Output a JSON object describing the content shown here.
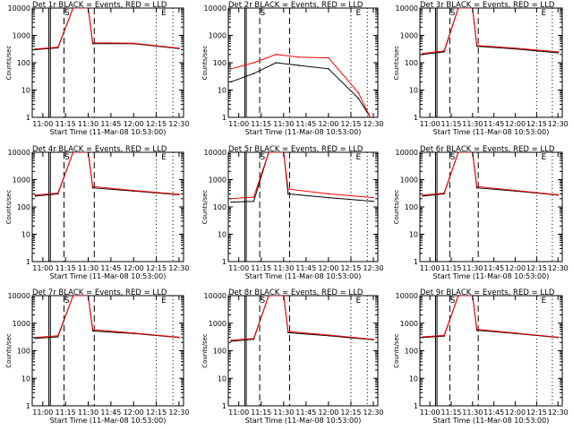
{
  "chart_data": [
    {
      "type": "line",
      "title": "Det 1r BLACK = Events, RED = LLD",
      "xlabel": "Start Time (11-Mar-08 10:53:00)",
      "ylabel": "Counts/sec",
      "yscale": "log",
      "ylim": [
        1,
        10000
      ],
      "xlim": [
        "10:53",
        "12:33"
      ],
      "x_ticks": [
        "11:00",
        "11:15",
        "11:30",
        "11:45",
        "12:00",
        "12:15",
        "12:30"
      ],
      "y_ticks": [
        "1",
        "10",
        "100",
        "1000",
        "10000"
      ],
      "markers": [
        "S",
        "E"
      ],
      "series": [
        {
          "name": "Events",
          "color": "#000000",
          "values": [
            {
              "time": "10:55",
              "value": 300
            },
            {
              "time": "11:10",
              "value": 350
            },
            {
              "time": "11:20",
              "value": 10000
            },
            {
              "time": "11:30",
              "value": 10000
            },
            {
              "time": "11:33",
              "value": 500
            },
            {
              "time": "12:00",
              "value": 500
            },
            {
              "time": "12:30",
              "value": 330
            }
          ]
        },
        {
          "name": "LLD",
          "color": "#ff0000",
          "values": [
            {
              "time": "10:55",
              "value": 320
            },
            {
              "time": "11:10",
              "value": 370
            },
            {
              "time": "11:20",
              "value": 10000
            },
            {
              "time": "11:30",
              "value": 10000
            },
            {
              "time": "11:33",
              "value": 540
            },
            {
              "time": "12:00",
              "value": 520
            },
            {
              "time": "12:30",
              "value": 340
            }
          ]
        }
      ]
    },
    {
      "type": "line",
      "title": "Det 2r BLACK = Events, RED = LLD",
      "xlabel": "Start Time (11-Mar-08 10:53:00)",
      "ylabel": "Counts/sec",
      "yscale": "log",
      "ylim": [
        1,
        10000
      ],
      "xlim": [
        "10:53",
        "12:33"
      ],
      "x_ticks": [
        "11:00",
        "11:15",
        "11:30",
        "11:45",
        "12:00",
        "12:15",
        "12:30"
      ],
      "y_ticks": [
        "1",
        "10",
        "100",
        "1000",
        "10000"
      ],
      "markers": [
        "S",
        "E"
      ],
      "series": [
        {
          "name": "Events",
          "color": "#000000",
          "values": [
            {
              "time": "10:55",
              "value": 20
            },
            {
              "time": "11:10",
              "value": 40
            },
            {
              "time": "11:25",
              "value": 100
            },
            {
              "time": "11:40",
              "value": 80
            },
            {
              "time": "12:00",
              "value": 60
            },
            {
              "time": "12:20",
              "value": 5
            },
            {
              "time": "12:28",
              "value": 1
            }
          ]
        },
        {
          "name": "LLD",
          "color": "#ff0000",
          "values": [
            {
              "time": "10:55",
              "value": 60
            },
            {
              "time": "11:10",
              "value": 100
            },
            {
              "time": "11:25",
              "value": 200
            },
            {
              "time": "11:40",
              "value": 160
            },
            {
              "time": "12:00",
              "value": 150
            },
            {
              "time": "12:20",
              "value": 8
            },
            {
              "time": "12:28",
              "value": 1
            }
          ]
        }
      ]
    },
    {
      "type": "line",
      "title": "Det 3r BLACK = Events, RED = LLD",
      "xlabel": "Start Time (11-Mar-08 10:53:00)",
      "ylabel": "Counts/sec",
      "yscale": "log",
      "ylim": [
        1,
        10000
      ],
      "xlim": [
        "10:53",
        "12:33"
      ],
      "x_ticks": [
        "11:00",
        "11:15",
        "11:30",
        "11:45",
        "12:00",
        "12:15",
        "12:30"
      ],
      "y_ticks": [
        "1",
        "10",
        "100",
        "1000",
        "10000"
      ],
      "markers": [
        "S",
        "E"
      ],
      "series": [
        {
          "name": "Events",
          "color": "#000000",
          "values": [
            {
              "time": "10:55",
              "value": 200
            },
            {
              "time": "11:10",
              "value": 250
            },
            {
              "time": "11:20",
              "value": 10000
            },
            {
              "time": "11:30",
              "value": 10000
            },
            {
              "time": "11:33",
              "value": 400
            },
            {
              "time": "12:00",
              "value": 320
            },
            {
              "time": "12:30",
              "value": 230
            }
          ]
        },
        {
          "name": "LLD",
          "color": "#ff0000",
          "values": [
            {
              "time": "10:55",
              "value": 220
            },
            {
              "time": "11:10",
              "value": 270
            },
            {
              "time": "11:20",
              "value": 10000
            },
            {
              "time": "11:30",
              "value": 10000
            },
            {
              "time": "11:33",
              "value": 430
            },
            {
              "time": "12:00",
              "value": 340
            },
            {
              "time": "12:30",
              "value": 250
            }
          ]
        }
      ]
    },
    {
      "type": "line",
      "title": "Det 4r BLACK = Events, RED = LLD",
      "xlabel": "Start Time (11-Mar-08 10:53:00)",
      "ylabel": "Counts/sec",
      "yscale": "log",
      "ylim": [
        1,
        10000
      ],
      "xlim": [
        "10:53",
        "12:33"
      ],
      "x_ticks": [
        "11:00",
        "11:15",
        "11:30",
        "11:45",
        "12:00",
        "12:15",
        "12:30"
      ],
      "y_ticks": [
        "1",
        "10",
        "100",
        "1000",
        "10000"
      ],
      "markers": [
        "S",
        "E"
      ],
      "series": [
        {
          "name": "Events",
          "color": "#000000",
          "values": [
            {
              "time": "10:55",
              "value": 250
            },
            {
              "time": "11:10",
              "value": 300
            },
            {
              "time": "11:20",
              "value": 10000
            },
            {
              "time": "11:30",
              "value": 10000
            },
            {
              "time": "11:33",
              "value": 500
            },
            {
              "time": "12:00",
              "value": 380
            },
            {
              "time": "12:30",
              "value": 280
            }
          ]
        },
        {
          "name": "LLD",
          "color": "#ff0000",
          "values": [
            {
              "time": "10:55",
              "value": 270
            },
            {
              "time": "11:10",
              "value": 320
            },
            {
              "time": "11:20",
              "value": 10000
            },
            {
              "time": "11:30",
              "value": 10000
            },
            {
              "time": "11:33",
              "value": 560
            },
            {
              "time": "12:00",
              "value": 400
            },
            {
              "time": "12:30",
              "value": 290
            }
          ]
        }
      ]
    },
    {
      "type": "line",
      "title": "Det 5r BLACK = Events, RED = LLD",
      "xlabel": "Start Time (11-Mar-08 10:53:00)",
      "ylabel": "Counts/sec",
      "yscale": "log",
      "ylim": [
        1,
        10000
      ],
      "xlim": [
        "10:53",
        "12:33"
      ],
      "x_ticks": [
        "11:00",
        "11:15",
        "11:30",
        "11:45",
        "12:00",
        "12:15",
        "12:30"
      ],
      "y_ticks": [
        "1",
        "10",
        "100",
        "1000",
        "10000"
      ],
      "markers": [
        "S",
        "E"
      ],
      "series": [
        {
          "name": "Events",
          "color": "#000000",
          "values": [
            {
              "time": "10:55",
              "value": 150
            },
            {
              "time": "11:10",
              "value": 160
            },
            {
              "time": "11:20",
              "value": 10000
            },
            {
              "time": "11:30",
              "value": 10000
            },
            {
              "time": "11:33",
              "value": 300
            },
            {
              "time": "12:00",
              "value": 220
            },
            {
              "time": "12:30",
              "value": 160
            }
          ]
        },
        {
          "name": "LLD",
          "color": "#ff0000",
          "values": [
            {
              "time": "10:55",
              "value": 200
            },
            {
              "time": "11:10",
              "value": 230
            },
            {
              "time": "11:20",
              "value": 10000
            },
            {
              "time": "11:30",
              "value": 10000
            },
            {
              "time": "11:33",
              "value": 450
            },
            {
              "time": "12:00",
              "value": 300
            },
            {
              "time": "12:30",
              "value": 220
            }
          ]
        }
      ]
    },
    {
      "type": "line",
      "title": "Det 6r BLACK = Events, RED = LLD",
      "xlabel": "Start Time (11-Mar-08 10:53:00)",
      "ylabel": "Counts/sec",
      "yscale": "log",
      "ylim": [
        1,
        10000
      ],
      "xlim": [
        "10:53",
        "12:33"
      ],
      "x_ticks": [
        "11:00",
        "11:15",
        "11:30",
        "11:45",
        "12:00",
        "12:15",
        "12:30"
      ],
      "y_ticks": [
        "1",
        "10",
        "100",
        "1000",
        "10000"
      ],
      "markers": [
        "S",
        "E"
      ],
      "series": [
        {
          "name": "Events",
          "color": "#000000",
          "values": [
            {
              "time": "10:55",
              "value": 250
            },
            {
              "time": "11:10",
              "value": 300
            },
            {
              "time": "11:20",
              "value": 10000
            },
            {
              "time": "11:30",
              "value": 10000
            },
            {
              "time": "11:33",
              "value": 500
            },
            {
              "time": "12:00",
              "value": 380
            },
            {
              "time": "12:30",
              "value": 270
            }
          ]
        },
        {
          "name": "LLD",
          "color": "#ff0000",
          "values": [
            {
              "time": "10:55",
              "value": 270
            },
            {
              "time": "11:10",
              "value": 320
            },
            {
              "time": "11:20",
              "value": 10000
            },
            {
              "time": "11:30",
              "value": 10000
            },
            {
              "time": "11:33",
              "value": 560
            },
            {
              "time": "12:00",
              "value": 400
            },
            {
              "time": "12:30",
              "value": 280
            }
          ]
        }
      ]
    },
    {
      "type": "line",
      "title": "Det 7r BLACK = Events, RED = LLD",
      "xlabel": "Start Time (11-Mar-08 10:53:00)",
      "ylabel": "Counts/sec",
      "yscale": "log",
      "ylim": [
        1,
        10000
      ],
      "xlim": [
        "10:53",
        "12:33"
      ],
      "x_ticks": [
        "11:00",
        "11:15",
        "11:30",
        "11:45",
        "12:00",
        "12:15",
        "12:30"
      ],
      "y_ticks": [
        "1",
        "10",
        "100",
        "1000",
        "10000"
      ],
      "markers": [
        "S",
        "E"
      ],
      "series": [
        {
          "name": "Events",
          "color": "#000000",
          "values": [
            {
              "time": "10:55",
              "value": 280
            },
            {
              "time": "11:10",
              "value": 320
            },
            {
              "time": "11:20",
              "value": 10000
            },
            {
              "time": "11:30",
              "value": 10000
            },
            {
              "time": "11:33",
              "value": 520
            },
            {
              "time": "12:00",
              "value": 420
            },
            {
              "time": "12:30",
              "value": 300
            }
          ]
        },
        {
          "name": "LLD",
          "color": "#ff0000",
          "values": [
            {
              "time": "10:55",
              "value": 300
            },
            {
              "time": "11:10",
              "value": 350
            },
            {
              "time": "11:20",
              "value": 10000
            },
            {
              "time": "11:30",
              "value": 10000
            },
            {
              "time": "11:33",
              "value": 580
            },
            {
              "time": "12:00",
              "value": 440
            },
            {
              "time": "12:30",
              "value": 310
            }
          ]
        }
      ]
    },
    {
      "type": "line",
      "title": "Det 8r BLACK = Events, RED = LLD",
      "xlabel": "Start Time (11-Mar-08 10:53:00)",
      "ylabel": "Counts/sec",
      "yscale": "log",
      "ylim": [
        1,
        10000
      ],
      "xlim": [
        "10:53",
        "12:33"
      ],
      "x_ticks": [
        "11:00",
        "11:15",
        "11:30",
        "11:45",
        "12:00",
        "12:15",
        "12:30"
      ],
      "y_ticks": [
        "1",
        "10",
        "100",
        "1000",
        "10000"
      ],
      "markers": [
        "S",
        "E"
      ],
      "series": [
        {
          "name": "Events",
          "color": "#000000",
          "values": [
            {
              "time": "10:55",
              "value": 220
            },
            {
              "time": "11:10",
              "value": 260
            },
            {
              "time": "11:20",
              "value": 10000
            },
            {
              "time": "11:30",
              "value": 10000
            },
            {
              "time": "11:33",
              "value": 450
            },
            {
              "time": "12:00",
              "value": 350
            },
            {
              "time": "12:30",
              "value": 250
            }
          ]
        },
        {
          "name": "LLD",
          "color": "#ff0000",
          "values": [
            {
              "time": "10:55",
              "value": 240
            },
            {
              "time": "11:10",
              "value": 280
            },
            {
              "time": "11:20",
              "value": 10000
            },
            {
              "time": "11:30",
              "value": 10000
            },
            {
              "time": "11:33",
              "value": 500
            },
            {
              "time": "12:00",
              "value": 370
            },
            {
              "time": "12:30",
              "value": 260
            }
          ]
        }
      ]
    },
    {
      "type": "line",
      "title": "Det 9r BLACK = Events, RED = LLD",
      "xlabel": "Start Time (11-Mar-08 10:53:00)",
      "ylabel": "Counts/sec",
      "yscale": "log",
      "ylim": [
        1,
        10000
      ],
      "xlim": [
        "10:53",
        "12:33"
      ],
      "x_ticks": [
        "11:00",
        "11:15",
        "11:30",
        "11:45",
        "12:00",
        "12:15",
        "12:30"
      ],
      "y_ticks": [
        "1",
        "10",
        "100",
        "1000",
        "10000"
      ],
      "markers": [
        "S",
        "E"
      ],
      "series": [
        {
          "name": "Events",
          "color": "#000000",
          "values": [
            {
              "time": "10:55",
              "value": 300
            },
            {
              "time": "11:10",
              "value": 340
            },
            {
              "time": "11:20",
              "value": 10000
            },
            {
              "time": "11:30",
              "value": 10000
            },
            {
              "time": "11:33",
              "value": 550
            },
            {
              "time": "12:00",
              "value": 420
            },
            {
              "time": "12:30",
              "value": 300
            }
          ]
        },
        {
          "name": "LLD",
          "color": "#ff0000",
          "values": [
            {
              "time": "10:55",
              "value": 320
            },
            {
              "time": "11:10",
              "value": 360
            },
            {
              "time": "11:20",
              "value": 10000
            },
            {
              "time": "11:30",
              "value": 10000
            },
            {
              "time": "11:33",
              "value": 600
            },
            {
              "time": "12:00",
              "value": 440
            },
            {
              "time": "12:30",
              "value": 310
            }
          ]
        }
      ]
    }
  ]
}
